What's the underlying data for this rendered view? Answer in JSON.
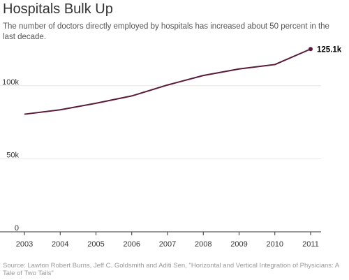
{
  "title": "Hospitals Bulk Up",
  "subtitle": "The number of doctors directly employed by hospitals has increased about 50 percent in the last decade.",
  "source": "Source: Lawton Robert Burns, Jeff C. Goldsmith and Aditi Sen, \"Horizontal and Vertical Integration of Physicians: A Tale of Two Tails\"",
  "colors": {
    "line": "#5a1a3a",
    "grid": "#e6e6e6",
    "axis": "#333333"
  },
  "chart_data": {
    "type": "line",
    "title": "Hospitals Bulk Up",
    "xlabel": "",
    "ylabel": "",
    "x": [
      2003,
      2004,
      2005,
      2006,
      2007,
      2008,
      2009,
      2010,
      2011
    ],
    "x_tick_labels": [
      "2003",
      "2004",
      "2005",
      "2006",
      "2007",
      "2008",
      "2009",
      "2010",
      "2011"
    ],
    "y_ticks": [
      0,
      50000,
      100000
    ],
    "y_tick_labels": [
      "0",
      "50k",
      "100k"
    ],
    "ylim": [
      0,
      130000
    ],
    "grid": true,
    "series": [
      {
        "values": [
          80500,
          83500,
          88000,
          93000,
          100500,
          107000,
          111500,
          114500,
          125100
        ]
      }
    ],
    "end_label": "125.1k"
  }
}
